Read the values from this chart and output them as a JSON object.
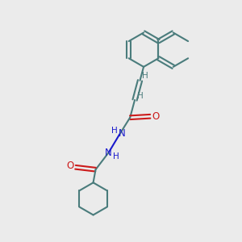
{
  "bg_color": "#ebebeb",
  "bond_color": "#4a7c7c",
  "N_color": "#1a1acc",
  "O_color": "#cc1a1a",
  "H_color": "#4a7c7c",
  "line_width": 1.5,
  "fig_size": [
    3.0,
    3.0
  ],
  "dpi": 100,
  "xlim": [
    0,
    10
  ],
  "ylim": [
    0,
    10
  ],
  "naph_r": 0.72,
  "cy_r": 0.68
}
